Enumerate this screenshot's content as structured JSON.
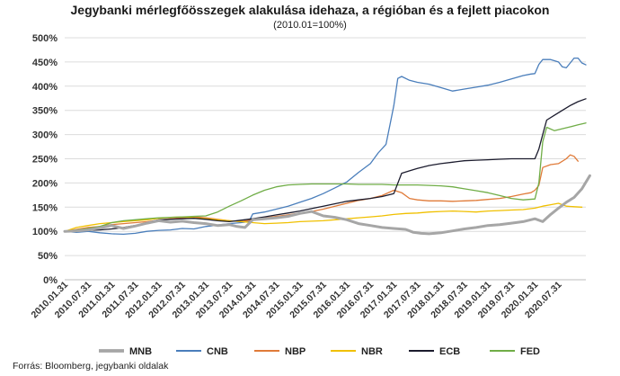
{
  "chart_data": {
    "type": "line",
    "title": "Jegybanki mérlegfőösszegek alakulása idehaza, a régióban és a fejlett piacokon",
    "subtitle": "(2010.01=100%)",
    "source": "Forrás: Bloomberg, jegybanki oldalak",
    "ylim": [
      0,
      500
    ],
    "y_ticks": [
      "0%",
      "50%",
      "100%",
      "150%",
      "200%",
      "250%",
      "300%",
      "350%",
      "400%",
      "450%",
      "500%"
    ],
    "y_tick_values": [
      0,
      50,
      100,
      150,
      200,
      250,
      300,
      350,
      400,
      450,
      500
    ],
    "x_tick_labels": [
      "2010.01.31",
      "2010.07.31",
      "2011.01.31",
      "2011.07.31",
      "2012.01.31",
      "2012.07.31",
      "2013.01.31",
      "2013.07.31",
      "2014.01.31",
      "2014.07.31",
      "2015.01.31",
      "2015.07.31",
      "2016.01.31",
      "2016.07.31",
      "2017.01.31",
      "2017.07.31",
      "2018.01.31",
      "2018.07.31",
      "2019.01.31",
      "2019.07.31",
      "2020.01.31",
      "2020.07.31"
    ],
    "x_tick_months": [
      0,
      6,
      12,
      18,
      24,
      30,
      36,
      42,
      48,
      54,
      60,
      66,
      72,
      78,
      84,
      90,
      96,
      102,
      108,
      114,
      120,
      126
    ],
    "x_range_months": [
      0,
      133
    ],
    "grid": "horizontal",
    "legend_position": "bottom",
    "series": [
      {
        "name": "MNB",
        "color": "#a6a6a6",
        "width": 3,
        "points": [
          [
            0,
            100
          ],
          [
            3,
            101
          ],
          [
            6,
            103
          ],
          [
            9,
            107
          ],
          [
            12,
            112
          ],
          [
            15,
            106
          ],
          [
            18,
            111
          ],
          [
            21,
            117
          ],
          [
            24,
            122
          ],
          [
            27,
            119
          ],
          [
            30,
            121
          ],
          [
            33,
            118
          ],
          [
            36,
            116
          ],
          [
            39,
            112
          ],
          [
            42,
            114
          ],
          [
            44,
            110
          ],
          [
            46,
            108
          ],
          [
            48,
            124
          ],
          [
            51,
            126
          ],
          [
            54,
            128
          ],
          [
            57,
            131
          ],
          [
            60,
            137
          ],
          [
            63,
            141
          ],
          [
            66,
            132
          ],
          [
            69,
            129
          ],
          [
            72,
            124
          ],
          [
            75,
            116
          ],
          [
            78,
            112
          ],
          [
            81,
            108
          ],
          [
            84,
            106
          ],
          [
            87,
            104
          ],
          [
            89,
            98
          ],
          [
            91,
            96
          ],
          [
            93,
            95
          ],
          [
            96,
            97
          ],
          [
            99,
            101
          ],
          [
            102,
            105
          ],
          [
            105,
            108
          ],
          [
            108,
            112
          ],
          [
            111,
            114
          ],
          [
            114,
            117
          ],
          [
            117,
            120
          ],
          [
            120,
            126
          ],
          [
            122,
            120
          ],
          [
            124,
            135
          ],
          [
            126,
            148
          ],
          [
            128,
            160
          ],
          [
            130,
            170
          ],
          [
            132,
            188
          ],
          [
            134,
            215
          ]
        ]
      },
      {
        "name": "CNB",
        "color": "#4a7ebb",
        "width": 1.3,
        "points": [
          [
            0,
            100
          ],
          [
            3,
            98
          ],
          [
            6,
            100
          ],
          [
            9,
            97
          ],
          [
            12,
            95
          ],
          [
            15,
            94
          ],
          [
            18,
            96
          ],
          [
            21,
            100
          ],
          [
            24,
            102
          ],
          [
            27,
            103
          ],
          [
            30,
            106
          ],
          [
            33,
            105
          ],
          [
            36,
            110
          ],
          [
            39,
            113
          ],
          [
            42,
            116
          ],
          [
            45,
            118
          ],
          [
            47,
            120
          ],
          [
            48,
            136
          ],
          [
            51,
            140
          ],
          [
            54,
            146
          ],
          [
            57,
            152
          ],
          [
            60,
            160
          ],
          [
            63,
            168
          ],
          [
            66,
            178
          ],
          [
            69,
            190
          ],
          [
            72,
            202
          ],
          [
            75,
            222
          ],
          [
            78,
            240
          ],
          [
            80,
            262
          ],
          [
            82,
            280
          ],
          [
            83,
            320
          ],
          [
            84,
            360
          ],
          [
            85,
            416
          ],
          [
            86,
            420
          ],
          [
            88,
            412
          ],
          [
            90,
            408
          ],
          [
            93,
            404
          ],
          [
            96,
            397
          ],
          [
            99,
            390
          ],
          [
            102,
            394
          ],
          [
            105,
            398
          ],
          [
            108,
            402
          ],
          [
            111,
            408
          ],
          [
            114,
            415
          ],
          [
            117,
            422
          ],
          [
            119,
            425
          ],
          [
            120,
            426
          ],
          [
            121,
            445
          ],
          [
            122,
            455
          ],
          [
            124,
            455
          ],
          [
            126,
            450
          ],
          [
            127,
            440
          ],
          [
            128,
            438
          ],
          [
            129,
            448
          ],
          [
            130,
            458
          ],
          [
            131,
            458
          ],
          [
            132,
            448
          ],
          [
            133,
            444
          ]
        ]
      },
      {
        "name": "NBP",
        "color": "#e07b39",
        "width": 1.3,
        "points": [
          [
            0,
            100
          ],
          [
            3,
            104
          ],
          [
            6,
            108
          ],
          [
            9,
            110
          ],
          [
            12,
            114
          ],
          [
            15,
            116
          ],
          [
            18,
            118
          ],
          [
            21,
            120
          ],
          [
            24,
            123
          ],
          [
            27,
            126
          ],
          [
            30,
            128
          ],
          [
            33,
            130
          ],
          [
            36,
            128
          ],
          [
            39,
            125
          ],
          [
            42,
            122
          ],
          [
            45,
            120
          ],
          [
            48,
            124
          ],
          [
            51,
            128
          ],
          [
            54,
            131
          ],
          [
            57,
            134
          ],
          [
            60,
            138
          ],
          [
            63,
            141
          ],
          [
            66,
            146
          ],
          [
            69,
            152
          ],
          [
            72,
            158
          ],
          [
            75,
            164
          ],
          [
            78,
            168
          ],
          [
            81,
            174
          ],
          [
            84,
            185
          ],
          [
            86,
            180
          ],
          [
            88,
            168
          ],
          [
            90,
            165
          ],
          [
            93,
            163
          ],
          [
            96,
            163
          ],
          [
            99,
            162
          ],
          [
            102,
            163
          ],
          [
            105,
            164
          ],
          [
            108,
            166
          ],
          [
            111,
            168
          ],
          [
            114,
            172
          ],
          [
            117,
            177
          ],
          [
            119,
            180
          ],
          [
            120,
            185
          ],
          [
            121,
            195
          ],
          [
            122,
            232
          ],
          [
            124,
            238
          ],
          [
            126,
            240
          ],
          [
            128,
            250
          ],
          [
            129,
            258
          ],
          [
            130,
            255
          ],
          [
            131,
            245
          ]
        ]
      },
      {
        "name": "NBR",
        "color": "#f0c000",
        "width": 1.3,
        "points": [
          [
            0,
            100
          ],
          [
            3,
            108
          ],
          [
            6,
            112
          ],
          [
            9,
            116
          ],
          [
            12,
            118
          ],
          [
            15,
            120
          ],
          [
            18,
            122
          ],
          [
            21,
            124
          ],
          [
            24,
            127
          ],
          [
            27,
            129
          ],
          [
            30,
            130
          ],
          [
            33,
            128
          ],
          [
            36,
            126
          ],
          [
            39,
            124
          ],
          [
            42,
            122
          ],
          [
            45,
            120
          ],
          [
            48,
            118
          ],
          [
            51,
            116
          ],
          [
            54,
            117
          ],
          [
            57,
            118
          ],
          [
            60,
            120
          ],
          [
            63,
            121
          ],
          [
            66,
            122
          ],
          [
            69,
            124
          ],
          [
            72,
            126
          ],
          [
            75,
            128
          ],
          [
            78,
            130
          ],
          [
            81,
            132
          ],
          [
            84,
            135
          ],
          [
            87,
            137
          ],
          [
            90,
            138
          ],
          [
            93,
            140
          ],
          [
            96,
            141
          ],
          [
            99,
            142
          ],
          [
            102,
            141
          ],
          [
            105,
            140
          ],
          [
            108,
            142
          ],
          [
            111,
            143
          ],
          [
            114,
            144
          ],
          [
            117,
            145
          ],
          [
            120,
            148
          ],
          [
            122,
            152
          ],
          [
            124,
            155
          ],
          [
            126,
            158
          ],
          [
            128,
            152
          ],
          [
            130,
            151
          ],
          [
            132,
            150
          ]
        ]
      },
      {
        "name": "ECB",
        "color": "#1c1c2e",
        "width": 1.3,
        "points": [
          [
            0,
            100
          ],
          [
            3,
            101
          ],
          [
            6,
            102
          ],
          [
            9,
            103
          ],
          [
            12,
            105
          ],
          [
            15,
            108
          ],
          [
            18,
            112
          ],
          [
            21,
            118
          ],
          [
            24,
            124
          ],
          [
            27,
            125
          ],
          [
            30,
            126
          ],
          [
            33,
            127
          ],
          [
            36,
            125
          ],
          [
            39,
            122
          ],
          [
            42,
            120
          ],
          [
            45,
            123
          ],
          [
            48,
            126
          ],
          [
            51,
            130
          ],
          [
            54,
            134
          ],
          [
            57,
            138
          ],
          [
            60,
            142
          ],
          [
            63,
            147
          ],
          [
            66,
            152
          ],
          [
            69,
            157
          ],
          [
            72,
            162
          ],
          [
            75,
            165
          ],
          [
            78,
            168
          ],
          [
            81,
            172
          ],
          [
            84,
            178
          ],
          [
            86,
            220
          ],
          [
            88,
            225
          ],
          [
            90,
            230
          ],
          [
            93,
            236
          ],
          [
            96,
            240
          ],
          [
            99,
            243
          ],
          [
            102,
            246
          ],
          [
            105,
            247
          ],
          [
            108,
            248
          ],
          [
            111,
            249
          ],
          [
            114,
            250
          ],
          [
            117,
            250
          ],
          [
            120,
            250
          ],
          [
            121,
            270
          ],
          [
            122,
            300
          ],
          [
            123,
            330
          ],
          [
            125,
            340
          ],
          [
            127,
            350
          ],
          [
            129,
            360
          ],
          [
            131,
            368
          ],
          [
            133,
            374
          ]
        ]
      },
      {
        "name": "FED",
        "color": "#70ad47",
        "width": 1.3,
        "points": [
          [
            0,
            100
          ],
          [
            3,
            103
          ],
          [
            6,
            106
          ],
          [
            9,
            110
          ],
          [
            12,
            118
          ],
          [
            15,
            122
          ],
          [
            18,
            124
          ],
          [
            21,
            126
          ],
          [
            24,
            128
          ],
          [
            27,
            129
          ],
          [
            30,
            130
          ],
          [
            33,
            131
          ],
          [
            36,
            132
          ],
          [
            39,
            140
          ],
          [
            42,
            152
          ],
          [
            45,
            163
          ],
          [
            48,
            175
          ],
          [
            51,
            185
          ],
          [
            54,
            192
          ],
          [
            57,
            196
          ],
          [
            60,
            197
          ],
          [
            63,
            198
          ],
          [
            66,
            198
          ],
          [
            69,
            198
          ],
          [
            72,
            198
          ],
          [
            75,
            197
          ],
          [
            78,
            197
          ],
          [
            81,
            197
          ],
          [
            84,
            196
          ],
          [
            87,
            196
          ],
          [
            90,
            196
          ],
          [
            93,
            195
          ],
          [
            96,
            194
          ],
          [
            99,
            192
          ],
          [
            102,
            188
          ],
          [
            105,
            184
          ],
          [
            108,
            180
          ],
          [
            111,
            174
          ],
          [
            114,
            168
          ],
          [
            117,
            165
          ],
          [
            120,
            167
          ],
          [
            121,
            200
          ],
          [
            122,
            285
          ],
          [
            123,
            315
          ],
          [
            125,
            308
          ],
          [
            127,
            312
          ],
          [
            129,
            316
          ],
          [
            131,
            320
          ],
          [
            133,
            324
          ]
        ]
      }
    ]
  }
}
